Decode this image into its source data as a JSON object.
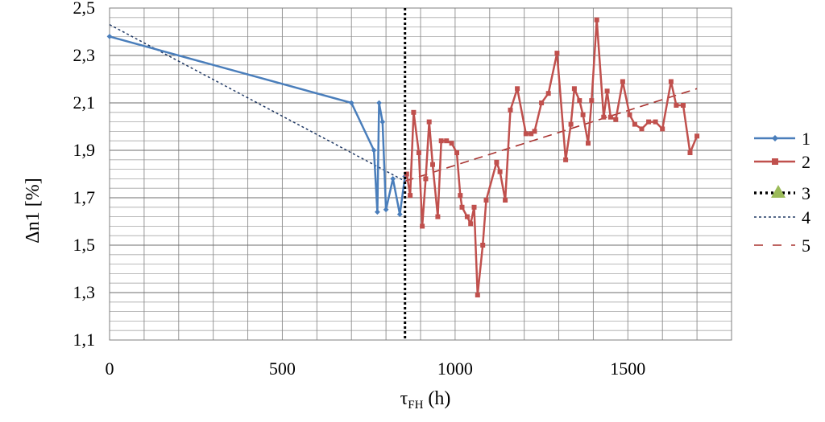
{
  "chart_data": {
    "type": "line",
    "xlabel_main": "τ",
    "xlabel_sub": "FH",
    "xlabel_unit": "(h)",
    "ylabel": "Δn1 [%]",
    "xlim": [
      0,
      1800
    ],
    "ylim": [
      1.1,
      2.5
    ],
    "x_ticks": [
      0,
      500,
      1000,
      1500
    ],
    "x_tick_labels": [
      "0",
      "500",
      "1000",
      "1500"
    ],
    "y_ticks": [
      1.1,
      1.3,
      1.5,
      1.7,
      1.9,
      2.1,
      2.3,
      2.5
    ],
    "y_tick_labels": [
      "1,1",
      "1,3",
      "1,5",
      "1,7",
      "1,9",
      "2,1",
      "2,3",
      "2,5"
    ],
    "grid": true,
    "legend_position": "right",
    "series": [
      {
        "name": "1",
        "color": "#4a7ebb",
        "style": "solid-diamond",
        "points": [
          [
            0,
            2.38
          ],
          [
            700,
            2.1
          ],
          [
            765,
            1.9
          ],
          [
            775,
            1.64
          ],
          [
            780,
            2.1
          ],
          [
            790,
            2.02
          ],
          [
            800,
            1.65
          ],
          [
            820,
            1.78
          ],
          [
            840,
            1.63
          ],
          [
            855,
            1.79
          ]
        ]
      },
      {
        "name": "2",
        "color": "#c0504d",
        "style": "solid-square",
        "points": [
          [
            860,
            1.8
          ],
          [
            870,
            1.71
          ],
          [
            880,
            2.06
          ],
          [
            895,
            1.89
          ],
          [
            905,
            1.58
          ],
          [
            915,
            1.78
          ],
          [
            925,
            2.02
          ],
          [
            935,
            1.84
          ],
          [
            950,
            1.62
          ],
          [
            960,
            1.94
          ],
          [
            975,
            1.94
          ],
          [
            990,
            1.93
          ],
          [
            1005,
            1.89
          ],
          [
            1015,
            1.71
          ],
          [
            1020,
            1.66
          ],
          [
            1035,
            1.62
          ],
          [
            1045,
            1.59
          ],
          [
            1055,
            1.66
          ],
          [
            1065,
            1.29
          ],
          [
            1080,
            1.5
          ],
          [
            1090,
            1.69
          ],
          [
            1120,
            1.85
          ],
          [
            1130,
            1.81
          ],
          [
            1145,
            1.69
          ],
          [
            1160,
            2.07
          ],
          [
            1180,
            2.16
          ],
          [
            1205,
            1.97
          ],
          [
            1220,
            1.97
          ],
          [
            1230,
            1.98
          ],
          [
            1250,
            2.1
          ],
          [
            1270,
            2.14
          ],
          [
            1295,
            2.31
          ],
          [
            1320,
            1.86
          ],
          [
            1335,
            2.01
          ],
          [
            1345,
            2.16
          ],
          [
            1360,
            2.11
          ],
          [
            1370,
            2.05
          ],
          [
            1385,
            1.93
          ],
          [
            1395,
            2.11
          ],
          [
            1410,
            2.45
          ],
          [
            1430,
            2.04
          ],
          [
            1440,
            2.15
          ],
          [
            1450,
            2.04
          ],
          [
            1465,
            2.03
          ],
          [
            1485,
            2.19
          ],
          [
            1505,
            2.05
          ],
          [
            1520,
            2.01
          ],
          [
            1540,
            1.99
          ],
          [
            1560,
            2.02
          ],
          [
            1580,
            2.02
          ],
          [
            1600,
            1.99
          ],
          [
            1625,
            2.19
          ],
          [
            1640,
            2.09
          ],
          [
            1660,
            2.09
          ],
          [
            1680,
            1.89
          ],
          [
            1700,
            1.96
          ]
        ]
      },
      {
        "name": "3",
        "color": "#000000",
        "marker_color": "#9bbb59",
        "style": "dotted-vertical",
        "x": 855
      },
      {
        "name": "4",
        "color": "#1f3864",
        "style": "short-dash",
        "points": [
          [
            0,
            2.43
          ],
          [
            855,
            1.77
          ]
        ]
      },
      {
        "name": "5",
        "color": "#a8322f",
        "style": "long-dash",
        "points": [
          [
            855,
            1.77
          ],
          [
            1700,
            2.16
          ]
        ]
      }
    ]
  }
}
